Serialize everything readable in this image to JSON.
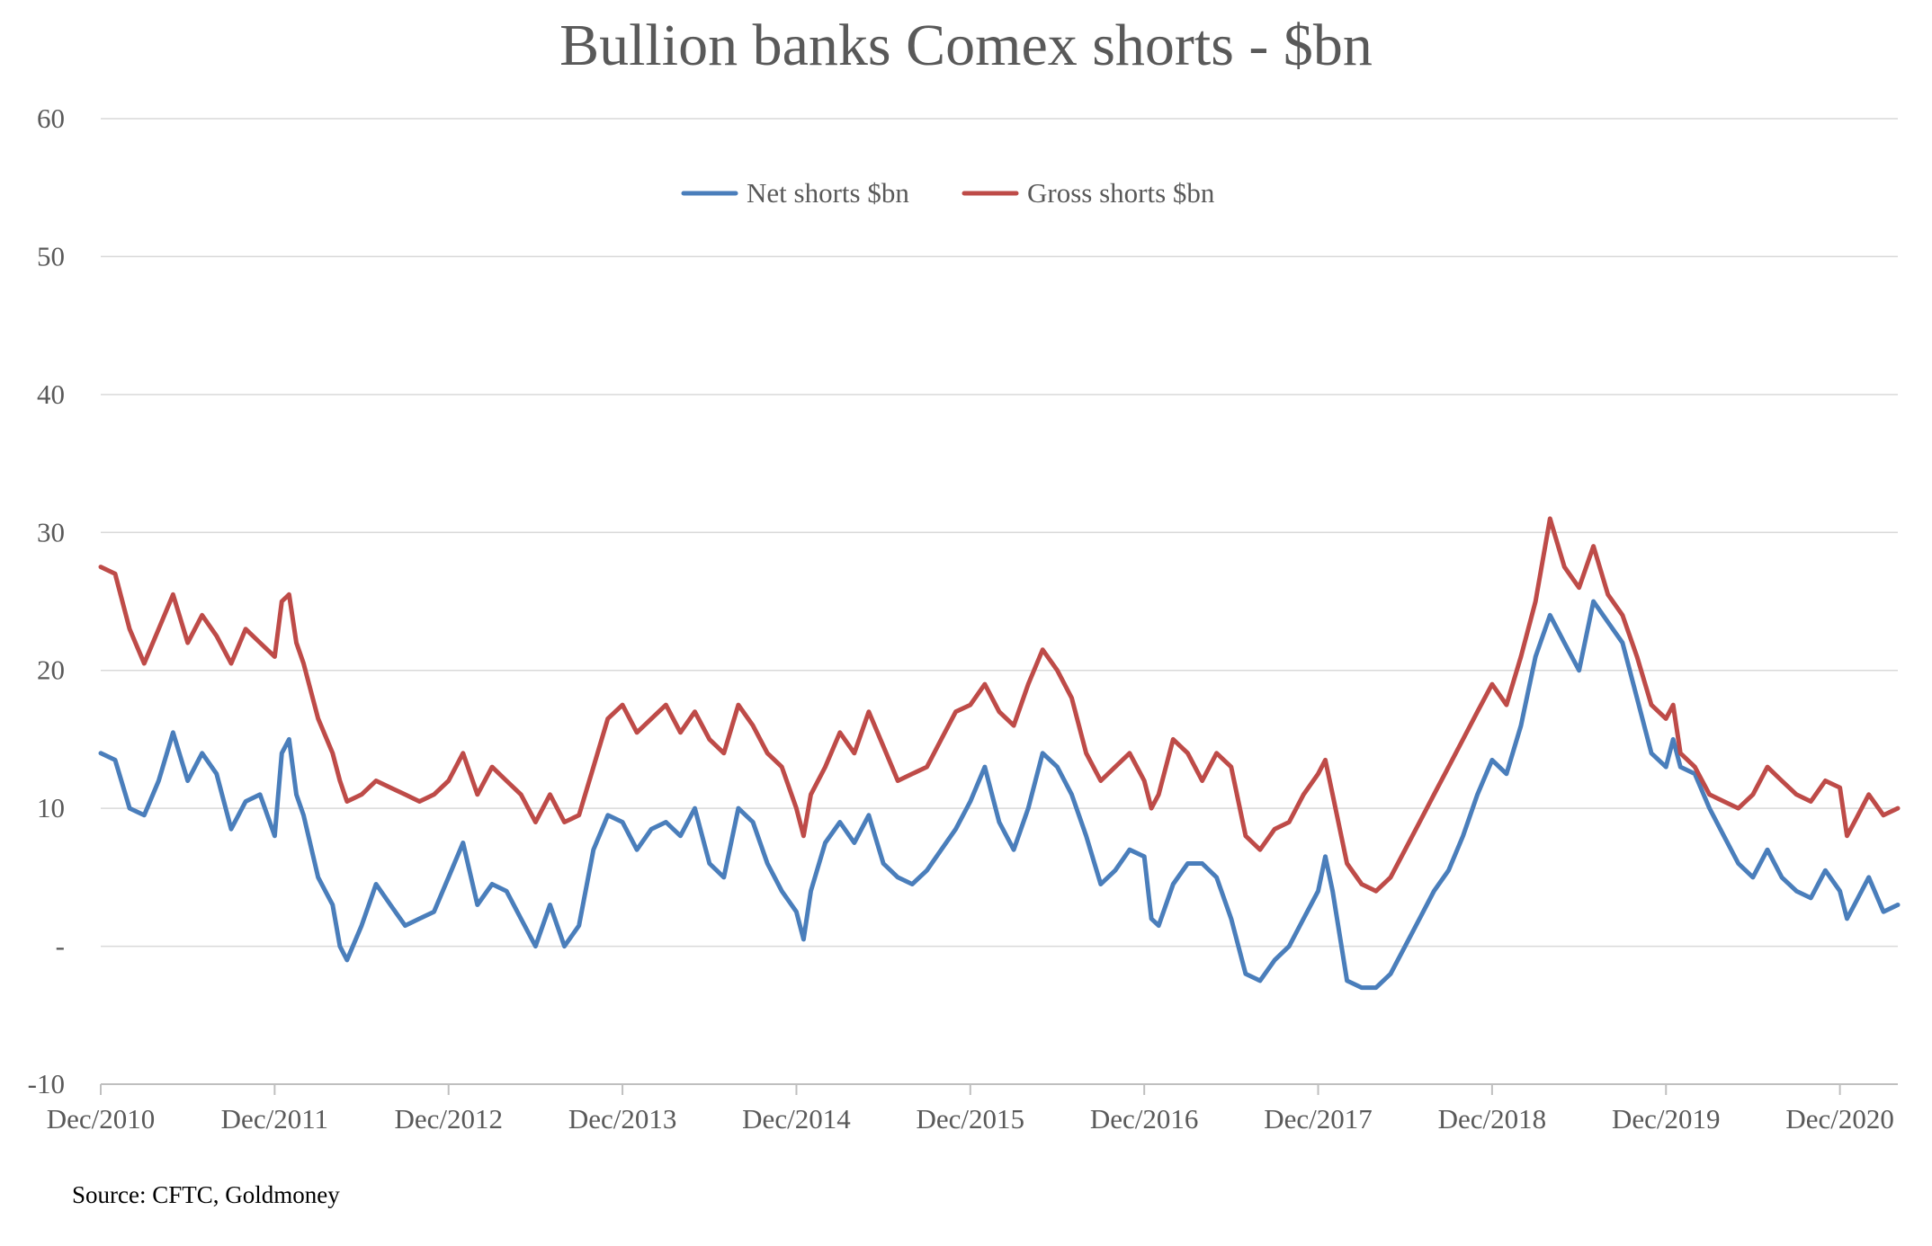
{
  "chart_data": {
    "type": "line",
    "title": "Bullion banks Comex shorts - $bn",
    "source": "Source: CFTC, Goldmoney",
    "xlabel": "",
    "ylabel": "",
    "ylim": [
      -10,
      60
    ],
    "y_ticks": [
      -10,
      0,
      10,
      20,
      30,
      40,
      50,
      60
    ],
    "y_tick_labels": [
      "-10",
      "-",
      "10",
      "20",
      "30",
      "40",
      "50",
      "60"
    ],
    "x_range": [
      2010.917,
      2021.25
    ],
    "x_ticks": [
      2010.917,
      2011.917,
      2012.917,
      2013.917,
      2014.917,
      2015.917,
      2016.917,
      2017.917,
      2018.917,
      2019.917,
      2020.917
    ],
    "x_tick_labels": [
      "Dec/2010",
      "Dec/2011",
      "Dec/2012",
      "Dec/2013",
      "Dec/2014",
      "Dec/2015",
      "Dec/2016",
      "Dec/2017",
      "Dec/2018",
      "Dec/2019",
      "Dec/2020"
    ],
    "grid": true,
    "legend_position": "top-center",
    "series": [
      {
        "name": "Net shorts $bn",
        "color": "#4a7ebb",
        "points": [
          [
            2010.917,
            14
          ],
          [
            2011.0,
            13.5
          ],
          [
            2011.083,
            10
          ],
          [
            2011.167,
            9.5
          ],
          [
            2011.25,
            12
          ],
          [
            2011.333,
            15.5
          ],
          [
            2011.417,
            12
          ],
          [
            2011.5,
            14
          ],
          [
            2011.583,
            12.5
          ],
          [
            2011.667,
            8.5
          ],
          [
            2011.75,
            10.5
          ],
          [
            2011.833,
            11
          ],
          [
            2011.917,
            8
          ],
          [
            2011.958,
            14
          ],
          [
            2012.0,
            15
          ],
          [
            2012.042,
            11
          ],
          [
            2012.083,
            9.5
          ],
          [
            2012.167,
            5
          ],
          [
            2012.25,
            3
          ],
          [
            2012.292,
            0
          ],
          [
            2012.333,
            -1
          ],
          [
            2012.417,
            1.5
          ],
          [
            2012.5,
            4.5
          ],
          [
            2012.583,
            3
          ],
          [
            2012.667,
            1.5
          ],
          [
            2012.75,
            2
          ],
          [
            2012.833,
            2.5
          ],
          [
            2012.917,
            5
          ],
          [
            2013.0,
            7.5
          ],
          [
            2013.083,
            3
          ],
          [
            2013.167,
            4.5
          ],
          [
            2013.25,
            4
          ],
          [
            2013.333,
            2
          ],
          [
            2013.417,
            0
          ],
          [
            2013.5,
            3
          ],
          [
            2013.583,
            0
          ],
          [
            2013.667,
            1.5
          ],
          [
            2013.75,
            7
          ],
          [
            2013.833,
            9.5
          ],
          [
            2013.917,
            9
          ],
          [
            2014.0,
            7
          ],
          [
            2014.083,
            8.5
          ],
          [
            2014.167,
            9
          ],
          [
            2014.25,
            8
          ],
          [
            2014.333,
            10
          ],
          [
            2014.417,
            6
          ],
          [
            2014.5,
            5
          ],
          [
            2014.583,
            10
          ],
          [
            2014.667,
            9
          ],
          [
            2014.75,
            6
          ],
          [
            2014.833,
            4
          ],
          [
            2014.917,
            2.5
          ],
          [
            2014.958,
            0.5
          ],
          [
            2015.0,
            4
          ],
          [
            2015.083,
            7.5
          ],
          [
            2015.167,
            9
          ],
          [
            2015.25,
            7.5
          ],
          [
            2015.333,
            9.5
          ],
          [
            2015.417,
            6
          ],
          [
            2015.5,
            5
          ],
          [
            2015.583,
            4.5
          ],
          [
            2015.667,
            5.5
          ],
          [
            2015.75,
            7
          ],
          [
            2015.833,
            8.5
          ],
          [
            2015.917,
            10.5
          ],
          [
            2016.0,
            13
          ],
          [
            2016.083,
            9
          ],
          [
            2016.167,
            7
          ],
          [
            2016.25,
            10
          ],
          [
            2016.333,
            14
          ],
          [
            2016.417,
            13
          ],
          [
            2016.5,
            11
          ],
          [
            2016.583,
            8
          ],
          [
            2016.667,
            4.5
          ],
          [
            2016.75,
            5.5
          ],
          [
            2016.833,
            7
          ],
          [
            2016.917,
            6.5
          ],
          [
            2016.958,
            2
          ],
          [
            2017.0,
            1.5
          ],
          [
            2017.083,
            4.5
          ],
          [
            2017.167,
            6
          ],
          [
            2017.25,
            6
          ],
          [
            2017.333,
            5
          ],
          [
            2017.417,
            2
          ],
          [
            2017.5,
            -2
          ],
          [
            2017.583,
            -2.5
          ],
          [
            2017.667,
            -1
          ],
          [
            2017.75,
            0
          ],
          [
            2017.833,
            2
          ],
          [
            2017.917,
            4
          ],
          [
            2017.958,
            6.5
          ],
          [
            2018.0,
            4
          ],
          [
            2018.083,
            -2.5
          ],
          [
            2018.167,
            -3
          ],
          [
            2018.25,
            -3
          ],
          [
            2018.333,
            -2
          ],
          [
            2018.417,
            0
          ],
          [
            2018.5,
            2
          ],
          [
            2018.583,
            4
          ],
          [
            2018.667,
            5.5
          ],
          [
            2018.75,
            8
          ],
          [
            2018.833,
            11
          ],
          [
            2018.917,
            13.5
          ],
          [
            2019.0,
            12.5
          ],
          [
            2019.083,
            16
          ],
          [
            2019.167,
            21
          ],
          [
            2019.25,
            24
          ],
          [
            2019.333,
            22
          ],
          [
            2019.417,
            20
          ],
          [
            2019.5,
            25
          ],
          [
            2019.583,
            23.5
          ],
          [
            2019.667,
            22
          ],
          [
            2019.75,
            18
          ],
          [
            2019.833,
            14
          ],
          [
            2019.917,
            13
          ],
          [
            2019.958,
            15
          ],
          [
            2020.0,
            13
          ],
          [
            2020.083,
            12.5
          ],
          [
            2020.167,
            10
          ],
          [
            2020.25,
            8
          ],
          [
            2020.333,
            6
          ],
          [
            2020.417,
            5
          ],
          [
            2020.5,
            7
          ],
          [
            2020.583,
            5
          ],
          [
            2020.667,
            4
          ],
          [
            2020.75,
            3.5
          ],
          [
            2020.833,
            5.5
          ],
          [
            2020.917,
            4
          ],
          [
            2020.958,
            2
          ],
          [
            2021.0,
            3
          ],
          [
            2021.083,
            5
          ],
          [
            2021.167,
            2.5
          ],
          [
            2021.25,
            3
          ]
        ]
      },
      {
        "name": "Gross shorts $bn",
        "color": "#be4b48",
        "points": [
          [
            2010.917,
            27.5
          ],
          [
            2011.0,
            27
          ],
          [
            2011.083,
            23
          ],
          [
            2011.167,
            20.5
          ],
          [
            2011.25,
            23
          ],
          [
            2011.333,
            25.5
          ],
          [
            2011.417,
            22
          ],
          [
            2011.5,
            24
          ],
          [
            2011.583,
            22.5
          ],
          [
            2011.667,
            20.5
          ],
          [
            2011.75,
            23
          ],
          [
            2011.833,
            22
          ],
          [
            2011.917,
            21
          ],
          [
            2011.958,
            25
          ],
          [
            2012.0,
            25.5
          ],
          [
            2012.042,
            22
          ],
          [
            2012.083,
            20.5
          ],
          [
            2012.167,
            16.5
          ],
          [
            2012.25,
            14
          ],
          [
            2012.292,
            12
          ],
          [
            2012.333,
            10.5
          ],
          [
            2012.417,
            11
          ],
          [
            2012.5,
            12
          ],
          [
            2012.583,
            11.5
          ],
          [
            2012.667,
            11
          ],
          [
            2012.75,
            10.5
          ],
          [
            2012.833,
            11
          ],
          [
            2012.917,
            12
          ],
          [
            2013.0,
            14
          ],
          [
            2013.083,
            11
          ],
          [
            2013.167,
            13
          ],
          [
            2013.25,
            12
          ],
          [
            2013.333,
            11
          ],
          [
            2013.417,
            9
          ],
          [
            2013.5,
            11
          ],
          [
            2013.583,
            9
          ],
          [
            2013.667,
            9.5
          ],
          [
            2013.75,
            13
          ],
          [
            2013.833,
            16.5
          ],
          [
            2013.917,
            17.5
          ],
          [
            2014.0,
            15.5
          ],
          [
            2014.083,
            16.5
          ],
          [
            2014.167,
            17.5
          ],
          [
            2014.25,
            15.5
          ],
          [
            2014.333,
            17
          ],
          [
            2014.417,
            15
          ],
          [
            2014.5,
            14
          ],
          [
            2014.583,
            17.5
          ],
          [
            2014.667,
            16
          ],
          [
            2014.75,
            14
          ],
          [
            2014.833,
            13
          ],
          [
            2014.917,
            10
          ],
          [
            2014.958,
            8
          ],
          [
            2015.0,
            11
          ],
          [
            2015.083,
            13
          ],
          [
            2015.167,
            15.5
          ],
          [
            2015.25,
            14
          ],
          [
            2015.333,
            17
          ],
          [
            2015.417,
            14.5
          ],
          [
            2015.5,
            12
          ],
          [
            2015.583,
            12.5
          ],
          [
            2015.667,
            13
          ],
          [
            2015.75,
            15
          ],
          [
            2015.833,
            17
          ],
          [
            2015.917,
            17.5
          ],
          [
            2016.0,
            19
          ],
          [
            2016.083,
            17
          ],
          [
            2016.167,
            16
          ],
          [
            2016.25,
            19
          ],
          [
            2016.333,
            21.5
          ],
          [
            2016.417,
            20
          ],
          [
            2016.5,
            18
          ],
          [
            2016.583,
            14
          ],
          [
            2016.667,
            12
          ],
          [
            2016.75,
            13
          ],
          [
            2016.833,
            14
          ],
          [
            2016.917,
            12
          ],
          [
            2016.958,
            10
          ],
          [
            2017.0,
            11
          ],
          [
            2017.083,
            15
          ],
          [
            2017.167,
            14
          ],
          [
            2017.25,
            12
          ],
          [
            2017.333,
            14
          ],
          [
            2017.417,
            13
          ],
          [
            2017.5,
            8
          ],
          [
            2017.583,
            7
          ],
          [
            2017.667,
            8.5
          ],
          [
            2017.75,
            9
          ],
          [
            2017.833,
            11
          ],
          [
            2017.917,
            12.5
          ],
          [
            2017.958,
            13.5
          ],
          [
            2018.0,
            11
          ],
          [
            2018.083,
            6
          ],
          [
            2018.167,
            4.5
          ],
          [
            2018.25,
            4
          ],
          [
            2018.333,
            5
          ],
          [
            2018.417,
            7
          ],
          [
            2018.5,
            9
          ],
          [
            2018.583,
            11
          ],
          [
            2018.667,
            13
          ],
          [
            2018.75,
            15
          ],
          [
            2018.833,
            17
          ],
          [
            2018.917,
            19
          ],
          [
            2019.0,
            17.5
          ],
          [
            2019.083,
            21
          ],
          [
            2019.167,
            25
          ],
          [
            2019.25,
            31
          ],
          [
            2019.333,
            27.5
          ],
          [
            2019.417,
            26
          ],
          [
            2019.5,
            29
          ],
          [
            2019.583,
            25.5
          ],
          [
            2019.667,
            24
          ],
          [
            2019.75,
            21
          ],
          [
            2019.833,
            17.5
          ],
          [
            2019.917,
            16.5
          ],
          [
            2019.958,
            17.5
          ],
          [
            2020.0,
            14
          ],
          [
            2020.083,
            13
          ],
          [
            2020.167,
            11
          ],
          [
            2020.25,
            10.5
          ],
          [
            2020.333,
            10
          ],
          [
            2020.417,
            11
          ],
          [
            2020.5,
            13
          ],
          [
            2020.583,
            12
          ],
          [
            2020.667,
            11
          ],
          [
            2020.75,
            10.5
          ],
          [
            2020.833,
            12
          ],
          [
            2020.917,
            11.5
          ],
          [
            2020.958,
            8
          ],
          [
            2021.0,
            9
          ],
          [
            2021.083,
            11
          ],
          [
            2021.167,
            9.5
          ],
          [
            2021.25,
            10
          ]
        ]
      }
    ]
  }
}
